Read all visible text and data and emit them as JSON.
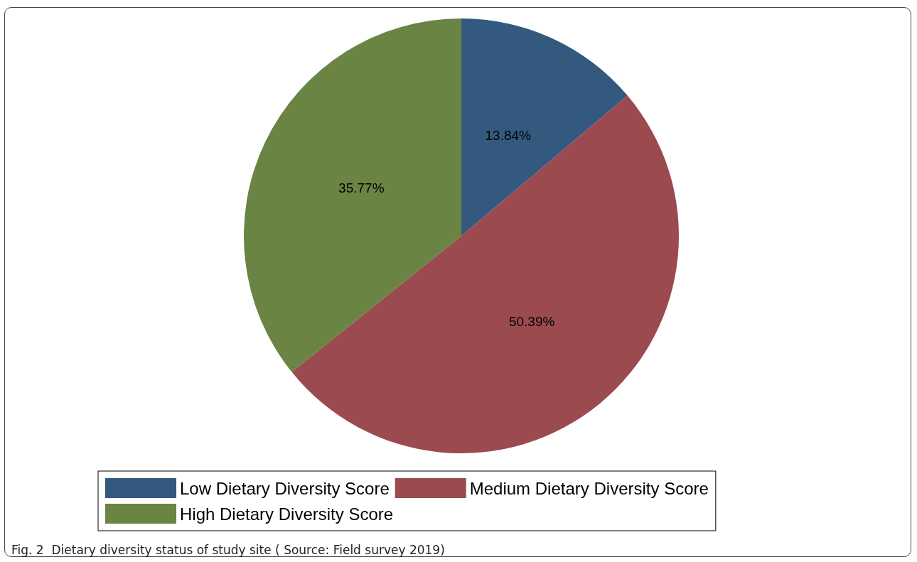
{
  "chart_data": {
    "type": "pie",
    "categories": [
      "Low Dietary Diversity Score",
      "Medium Dietary Diversity Score",
      "High Dietary Diversity Score"
    ],
    "values": [
      13.84,
      50.39,
      35.77
    ],
    "value_labels": [
      "13.84%",
      "50.39%",
      "35.77%"
    ],
    "colors": [
      "#335a7e",
      "#9b4a50",
      "#6a8443"
    ],
    "legend": "bottom",
    "annotations": [
      "Fig. 2  Dietary diversity status of study site ( Source: Field survey 2019)"
    ]
  }
}
